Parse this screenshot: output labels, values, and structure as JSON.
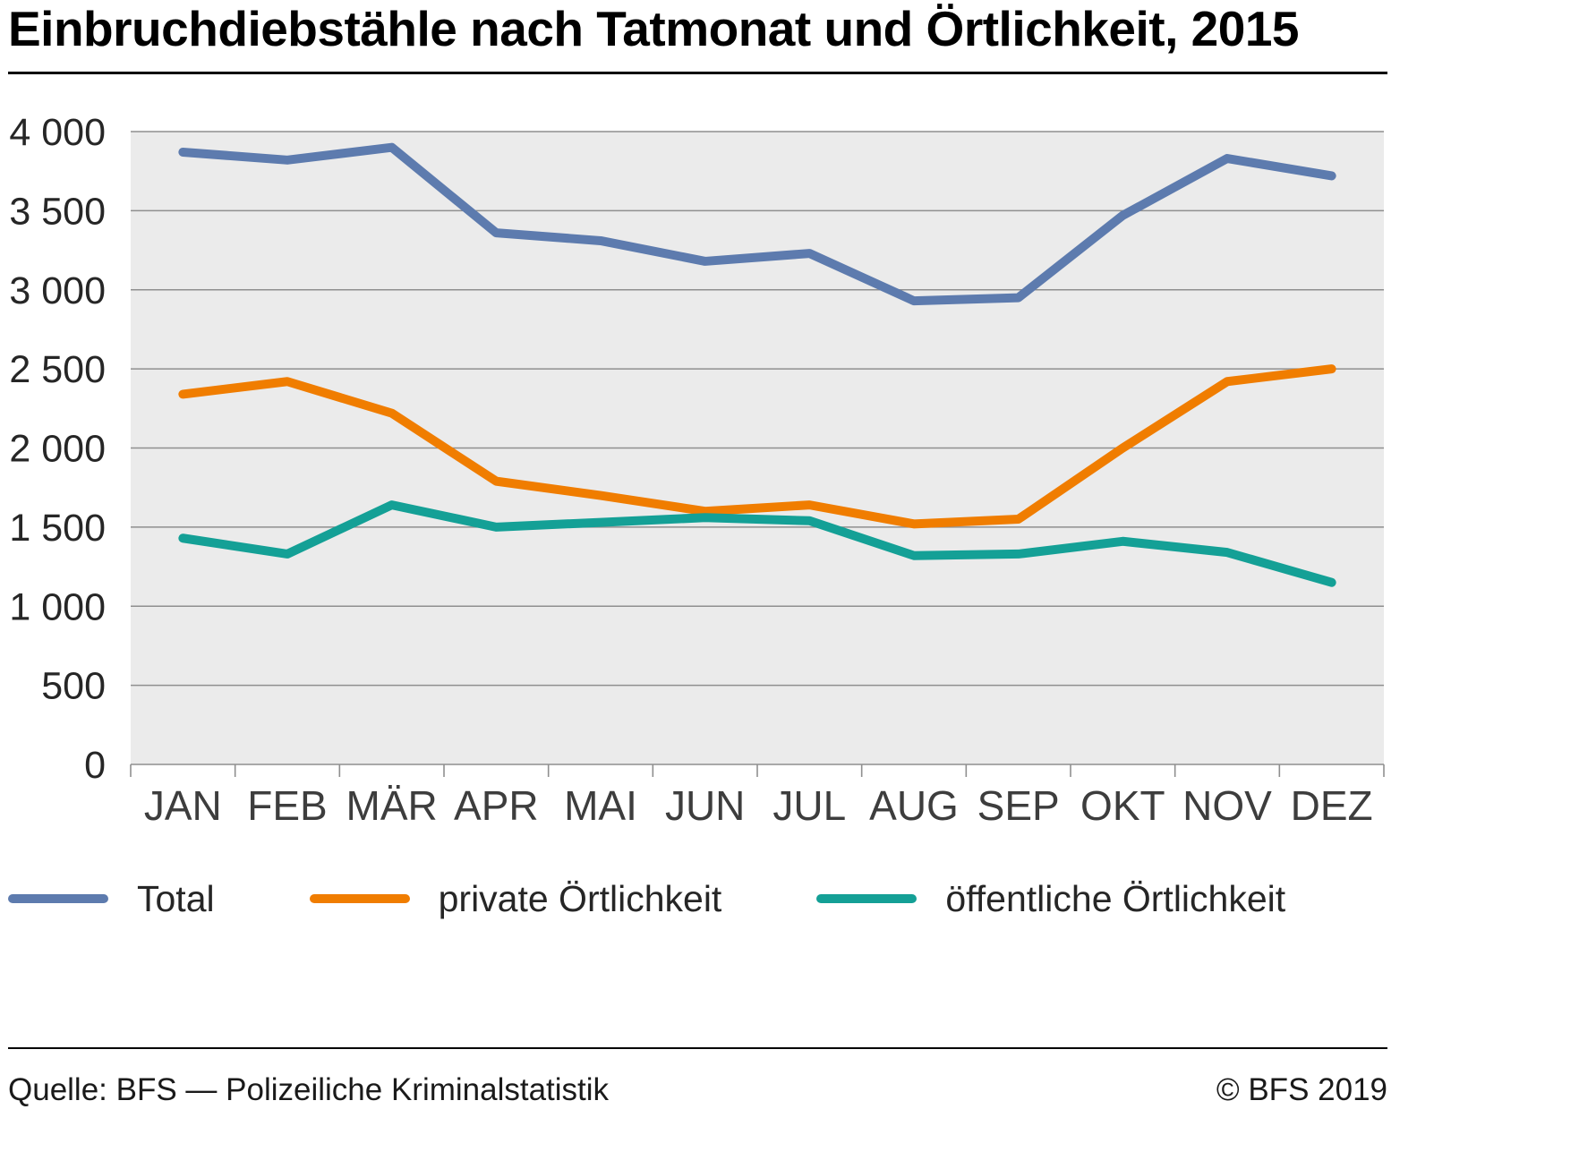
{
  "title": "Einbruchdiebstähle nach Tatmonat und Örtlichkeit, 2015",
  "chart_data": {
    "type": "line",
    "title": "Einbruchdiebstähle nach Tatmonat und Örtlichkeit, 2015",
    "categories": [
      "JAN",
      "FEB",
      "MÄR",
      "APR",
      "MAI",
      "JUN",
      "JUL",
      "AUG",
      "SEP",
      "OKT",
      "NOV",
      "DEZ"
    ],
    "series": [
      {
        "name": "Total",
        "color": "#5d7bae",
        "values": [
          3870,
          3820,
          3900,
          3360,
          3310,
          3180,
          3230,
          2930,
          2950,
          3470,
          3830,
          3720
        ]
      },
      {
        "name": "private Örtlichkeit",
        "color": "#f07d00",
        "values": [
          2340,
          2420,
          2220,
          1790,
          1700,
          1600,
          1640,
          1520,
          1550,
          2000,
          2420,
          2500
        ]
      },
      {
        "name": "öffentliche Örtlichkeit",
        "color": "#14a096",
        "values": [
          1430,
          1330,
          1640,
          1500,
          1530,
          1560,
          1540,
          1320,
          1330,
          1410,
          1340,
          1150
        ]
      }
    ],
    "xlabel": "",
    "ylabel": "",
    "ylim": [
      0,
      4000
    ],
    "ytick_step": 500,
    "ytick_labels": [
      "0",
      "500",
      "1 000",
      "1 500",
      "2 000",
      "2 500",
      "3 000",
      "3 500",
      "4 000"
    ],
    "grid": "horizontal",
    "legend_position": "bottom",
    "plot_bg": "#ebebeb",
    "grid_color": "#8f8f8f"
  },
  "footer": {
    "source": "Quelle: BFS — Polizeiliche Kriminalstatistik",
    "copyright": "© BFS 2019"
  }
}
